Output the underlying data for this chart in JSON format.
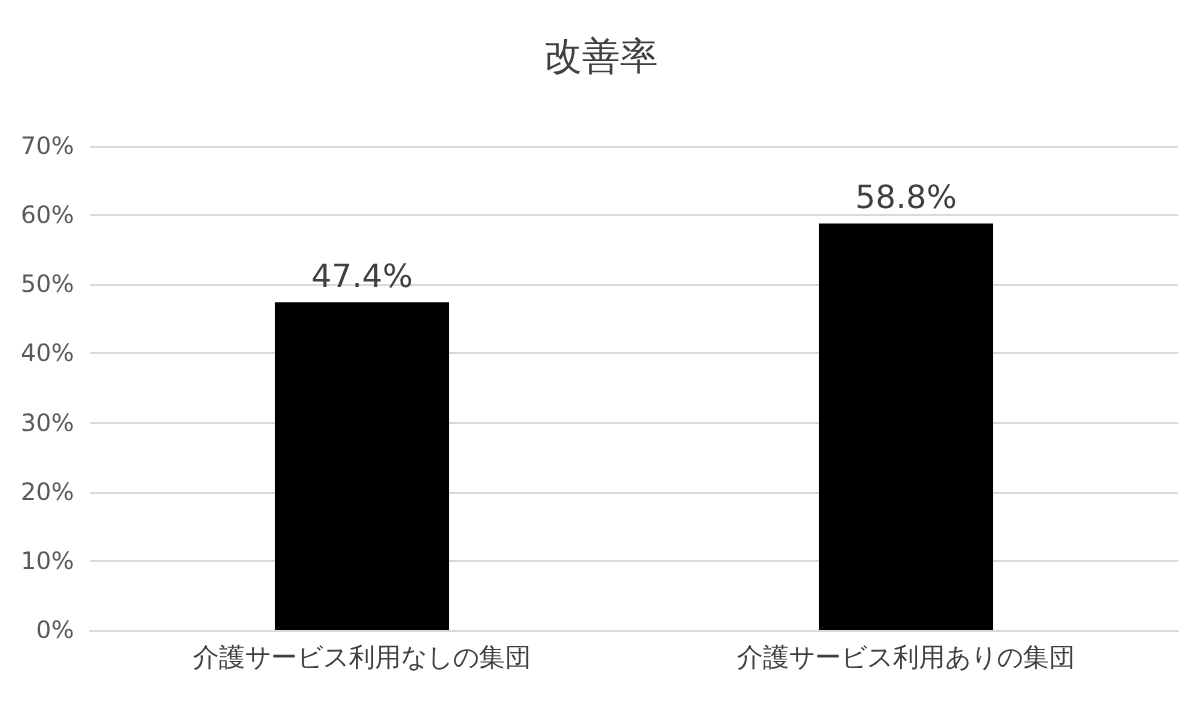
{
  "chart_data": {
    "type": "bar",
    "title": "改善率",
    "categories": [
      "介護サービス利用なしの集団",
      "介護サービス利用ありの集団"
    ],
    "values": [
      47.4,
      58.8
    ],
    "color": "#000000",
    "value_labels": [
      "47.4%",
      "58.8%"
    ],
    "ylim": [
      0,
      70
    ],
    "yticks": [
      {
        "value": 0,
        "label": "0%"
      },
      {
        "value": 10,
        "label": "10%"
      },
      {
        "value": 20,
        "label": "20%"
      },
      {
        "value": 30,
        "label": "30%"
      },
      {
        "value": 40,
        "label": "40%"
      },
      {
        "value": 50,
        "label": "50%"
      },
      {
        "value": 60,
        "label": "60%"
      },
      {
        "value": 70,
        "label": "70%"
      }
    ],
    "grid": "y"
  }
}
